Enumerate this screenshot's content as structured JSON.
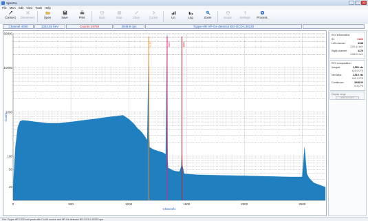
{
  "window": {
    "title": "Spectra"
  },
  "menu": [
    "File",
    "MCA",
    "Edit",
    "View",
    "Tools",
    "Help"
  ],
  "toolbar": [
    {
      "label": "Connect",
      "icon": "connect-icon",
      "enabled": true
    },
    {
      "label": "Disconnect",
      "icon": "disconnect-icon",
      "enabled": false
    },
    {
      "label": "Open",
      "icon": "folder-icon",
      "enabled": true
    },
    {
      "label": "Save",
      "icon": "floppy-icon",
      "enabled": true
    },
    {
      "label": "Print",
      "icon": "printer-icon",
      "enabled": true
    },
    {
      "label": "Start",
      "icon": "start-icon",
      "enabled": false
    },
    {
      "label": "Stop",
      "icon": "stop-icon",
      "enabled": false
    },
    {
      "label": "Clear",
      "icon": "clear-icon",
      "enabled": false
    },
    {
      "label": "Cursor",
      "icon": "cursor-icon",
      "enabled": false
    },
    {
      "label": "Lin",
      "icon": "lin-icon",
      "enabled": true
    },
    {
      "label": "Log",
      "icon": "log-icon",
      "enabled": true
    },
    {
      "label": "Zoom",
      "icon": "zoom-icon",
      "enabled": true
    },
    {
      "label": "Scope",
      "icon": "scope-icon",
      "enabled": false
    },
    {
      "label": "Settings",
      "icon": "settings-icon",
      "enabled": false
    },
    {
      "label": "Process",
      "icon": "process-icon",
      "enabled": true
    }
  ],
  "status": {
    "channel": "Channel 4090",
    "energy": "1332.82 keV",
    "counts": "Counts 24758",
    "cps": "3848.9 cps",
    "detector": "Toppe-HR HP-Ge detector BG-GCD-L30220"
  },
  "roi_info": {
    "title": "ROI information",
    "id_label": "ID:",
    "id_value": "Co60",
    "left_label": "Left channel:",
    "left_value": "4138",
    "left_energy": "1321.41 keV",
    "right_label": "Right channel:",
    "right_value": "4179",
    "right_energy": "1338.91 keV"
  },
  "roi_comp": {
    "title": "ROI computation",
    "integral_label": "Integral:",
    "integral_value": "2,550 cts",
    "integral_cps": "424.0 CPS",
    "net_label": "Net area:",
    "net_value": "2,510 cts",
    "net_cps": "418.1 CPS",
    "cont_label": "Continuum:",
    "cont_value": "3938.00",
    "cont_cps": "6.3 CPS"
  },
  "range": {
    "title": "Display range",
    "button": "SWITCH OFF"
  },
  "statusbar": {
    "message": "File: Toppe-HR 1332 keV peak with Co-60 source and HP-Ge detector BG-GCD-L30220.spe"
  },
  "colors": {
    "fill": "#1f7fbf",
    "marker_orange": "#f08a24",
    "marker_pink": "#e0247a",
    "marker_red": "#c81e28",
    "grid": "#8a8a8a"
  },
  "chart_data": {
    "type": "area",
    "xlabel": "Channels",
    "ylabel": "Counts",
    "yscale": "log",
    "xlim": [
      0,
      2700
    ],
    "ylim": [
      10,
      60000
    ],
    "x_ticks": [
      0,
      500,
      1000,
      1500,
      2000,
      2500
    ],
    "y_tick_labels": [
      {
        "v": 60000,
        "t": "60000"
      },
      {
        "v": 10000,
        "t": "10000"
      },
      {
        "v": 1000,
        "t": "1000"
      },
      {
        "v": 100,
        "t": "100"
      },
      {
        "v": 50,
        "t": "50"
      },
      {
        "v": 20,
        "t": "20"
      }
    ],
    "markers": [
      {
        "x": 1173,
        "label": "1173",
        "color": "#f08a24"
      },
      {
        "x": 1332,
        "label": "1332",
        "color": "#e0247a"
      },
      {
        "x": 1460,
        "label": "1460",
        "color": "#c81e28"
      }
    ],
    "series": [
      {
        "x": [
          0,
          20,
          40,
          60,
          80,
          120,
          200,
          300,
          400,
          500,
          600,
          700,
          800,
          900,
          950,
          1000,
          1040,
          1080,
          1100,
          1120,
          1140,
          1160,
          1173,
          1176,
          1180,
          1220,
          1260,
          1300,
          1320,
          1332,
          1336,
          1340,
          1380,
          1420,
          1440,
          1455,
          1460,
          1465,
          1480,
          1600,
          1800,
          2000,
          2200,
          2400,
          2500,
          2520,
          2540,
          2560,
          2600,
          2700
        ],
        "y": [
          20,
          160,
          450,
          620,
          650,
          640,
          600,
          560,
          560,
          600,
          650,
          700,
          760,
          820,
          850,
          700,
          560,
          420,
          380,
          330,
          280,
          230,
          27000,
          350,
          160,
          140,
          130,
          120,
          110,
          57000,
          90,
          55,
          48,
          45,
          45,
          60,
          150,
          60,
          40,
          38,
          37,
          36,
          35,
          34,
          34,
          160,
          40,
          32,
          25,
          20
        ]
      }
    ]
  }
}
